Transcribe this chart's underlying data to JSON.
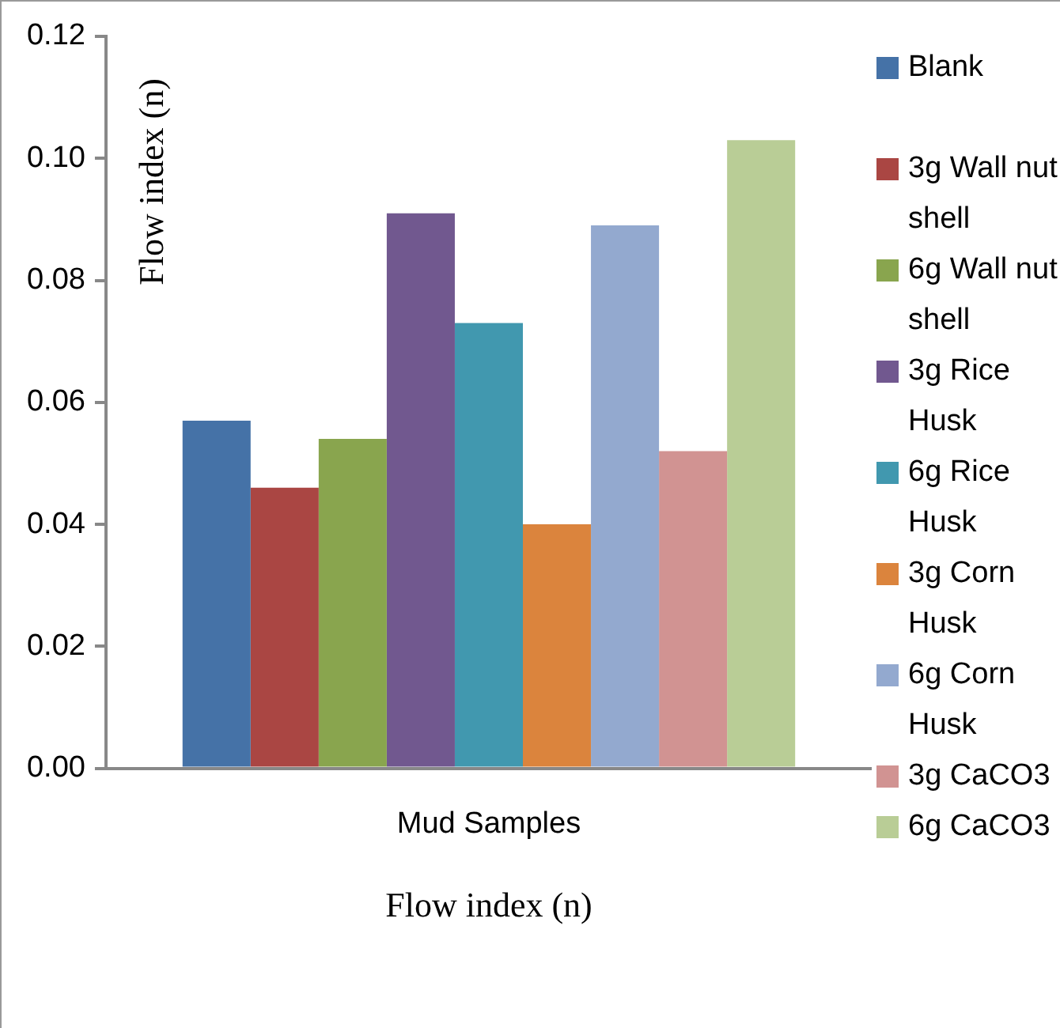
{
  "chart_data": {
    "type": "bar",
    "xlabel": "Flow index (n)",
    "ylabel": "Flow index (n)",
    "categories": [
      "Mud Samples"
    ],
    "series": [
      {
        "name": "Blank",
        "color": "#4572a7",
        "values": [
          0.057
        ]
      },
      {
        "name": "3g  Wall nut shell",
        "color": "#aa4643",
        "values": [
          0.046
        ]
      },
      {
        "name": "6g  Wall nut shell",
        "color": "#89a54e",
        "values": [
          0.054
        ]
      },
      {
        "name": "3g Rice Husk",
        "color": "#71588f",
        "values": [
          0.091
        ]
      },
      {
        "name": "6g Rice Husk",
        "color": "#4198af",
        "values": [
          0.073
        ]
      },
      {
        "name": "3g Corn Husk",
        "color": "#db843d",
        "values": [
          0.04
        ]
      },
      {
        "name": "6g Corn Husk",
        "color": "#93a9cf",
        "values": [
          0.089
        ]
      },
      {
        "name": "3g CaCO3",
        "color": "#d19392",
        "values": [
          0.052
        ]
      },
      {
        "name": "6g CaCO3",
        "color": "#b9cd96",
        "values": [
          0.103
        ]
      }
    ],
    "ylim": [
      0,
      0.12
    ],
    "yticks": [
      {
        "value": 0,
        "label": "0.00"
      },
      {
        "value": 0.02,
        "label": "0.02"
      },
      {
        "value": 0.04,
        "label": "0.04"
      },
      {
        "value": 0.06,
        "label": "0.06"
      },
      {
        "value": 0.08,
        "label": "0.08"
      },
      {
        "value": 0.1,
        "label": "0.10"
      },
      {
        "value": 0.12,
        "label": "0.12"
      }
    ],
    "grid": false,
    "legend": "right"
  }
}
